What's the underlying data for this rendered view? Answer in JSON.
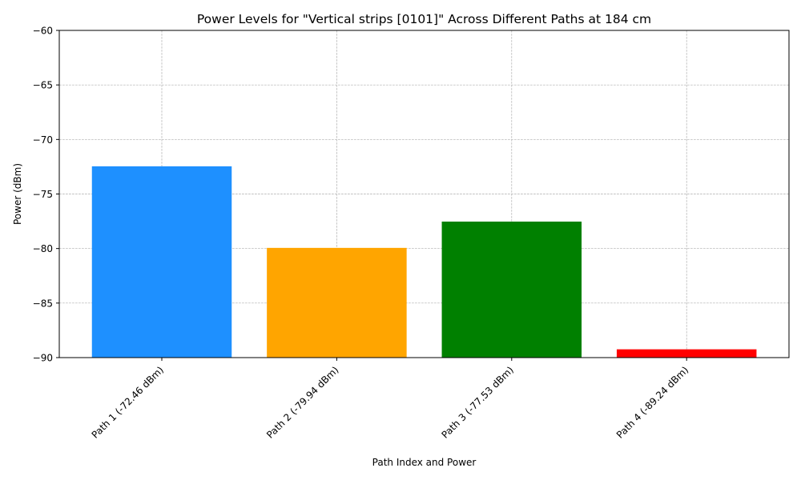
{
  "chart_data": {
    "type": "bar",
    "title": "Power Levels for \"Vertical strips [0101]\" Across Different Paths at 184 cm",
    "xlabel": "Path Index and Power",
    "ylabel": "Power (dBm)",
    "categories": [
      "Path 1 (-72.46 dBm)",
      "Path 2 (-79.94 dBm)",
      "Path 3 (-77.53 dBm)",
      "Path 4 (-89.24 dBm)"
    ],
    "values": [
      -72.46,
      -79.94,
      -77.53,
      -89.24
    ],
    "colors": [
      "#1e90ff",
      "#ffa500",
      "#008000",
      "#ff0000"
    ],
    "ylim": [
      -90,
      -60
    ],
    "yticks": [
      -90,
      -85,
      -80,
      -75,
      -70,
      -65,
      -60
    ],
    "ytick_labels": [
      "−90",
      "−85",
      "−80",
      "−75",
      "−70",
      "−65",
      "−60"
    ],
    "grid": true,
    "legend": "none"
  }
}
